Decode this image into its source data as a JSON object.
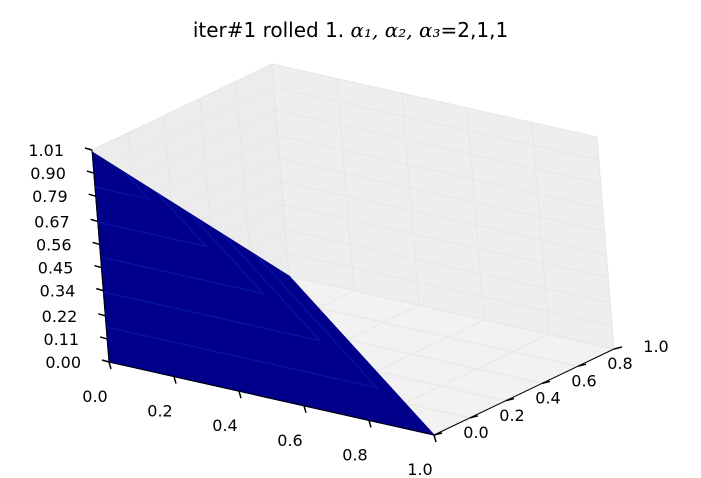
{
  "chart_data": {
    "type": "surface3d",
    "title_text": "iter#1 rolled 1. ",
    "title_math": "α₁, α₂, α₃",
    "title_suffix": "=2,1,1",
    "xlabel": "",
    "ylabel": "",
    "zlabel": "",
    "x_ticks": [
      "0.0",
      "0.2",
      "0.4",
      "0.6",
      "0.8",
      "1.0"
    ],
    "y_ticks": [
      "0.0",
      "0.2",
      "0.4",
      "0.6",
      "0.8",
      "1.0"
    ],
    "z_ticks": [
      "0.00",
      "0.11",
      "0.22",
      "0.34",
      "0.45",
      "0.56",
      "0.67",
      "0.79",
      "0.90",
      "1.01"
    ],
    "xlim": [
      0,
      1
    ],
    "ylim": [
      0,
      1
    ],
    "zlim": [
      0,
      1.01
    ],
    "grid": true,
    "surface": {
      "vertices": [
        {
          "x": 0,
          "y": 0,
          "z": 0
        },
        {
          "x": 1,
          "y": 0,
          "z": 0
        },
        {
          "x": 0,
          "y": 1,
          "z": 0
        },
        {
          "x": 0,
          "y": 0,
          "z": 1
        }
      ],
      "color": "#00008b"
    },
    "pane_color": "#f2f2f2",
    "grid_color": "#e6e6e6"
  }
}
